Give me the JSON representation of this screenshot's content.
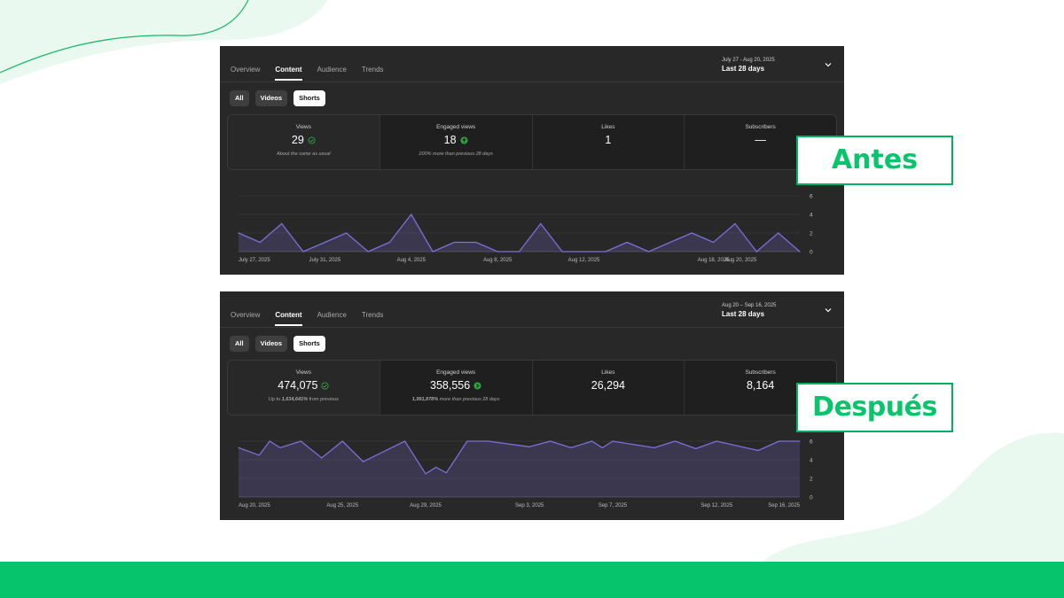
{
  "colors": {
    "accent_green": "#05c46b",
    "panel_bg": "#282828",
    "series": "#7c6fd9",
    "check_green": "#2ba640"
  },
  "panels": [
    {
      "tabs": [
        "Overview",
        "Content",
        "Audience",
        "Trends"
      ],
      "active_tab": "Content",
      "date_range": "July 27 - Aug 20, 2025",
      "period": "Last 28 days",
      "chips": [
        "All",
        "Videos",
        "Shorts"
      ],
      "selected_chip": "Shorts",
      "metrics": [
        {
          "label": "Views",
          "value": "29",
          "icon": "check-circle-icon",
          "note": "About the same as usual"
        },
        {
          "label": "Engaged views",
          "value": "18",
          "icon": "arrow-up-circle-icon",
          "note": "200% more than previous 28 days"
        },
        {
          "label": "Likes",
          "value": "1"
        },
        {
          "label": "Subscribers",
          "value": "—"
        }
      ],
      "badge": "Antes",
      "chart_data": {
        "type": "area",
        "y_ticks": [
          0,
          2,
          4,
          6
        ],
        "ylim": [
          0,
          6
        ],
        "x_tick_labels": [
          "July 27, 2025",
          "July 31, 2025",
          "Aug 4, 2025",
          "Aug 8, 2025",
          "Aug 12, 2025",
          "Aug 18, 2025",
          "Aug 20, 2025"
        ],
        "x_tick_days": [
          0,
          4,
          8,
          12,
          16,
          22,
          24
        ],
        "x_days": [
          0,
          1,
          2,
          3,
          4,
          5,
          6,
          7,
          8,
          9,
          10,
          11,
          12,
          13,
          14,
          15,
          16,
          17,
          18,
          19,
          20,
          21,
          22,
          23,
          24,
          25,
          26
        ],
        "values": [
          2,
          1,
          3,
          0,
          1,
          2,
          0,
          1,
          4,
          0,
          1,
          1,
          0,
          0,
          3,
          0,
          0,
          0,
          1,
          0,
          1,
          2,
          1,
          3,
          0,
          2,
          0
        ]
      }
    },
    {
      "tabs": [
        "Overview",
        "Content",
        "Audience",
        "Trends"
      ],
      "active_tab": "Content",
      "date_range": "Aug 20 – Sep 16, 2025",
      "period": "Last 28 days",
      "chips": [
        "All",
        "Videos",
        "Shorts"
      ],
      "selected_chip": "Shorts",
      "metrics": [
        {
          "label": "Views",
          "value": "474,075",
          "icon": "check-circle-icon",
          "note_prefix": "Up to ",
          "note_bold": "1,634,641%",
          "note": " from previous"
        },
        {
          "label": "Engaged views",
          "value": "358,556",
          "icon": "arrow-up-circle-icon",
          "note_bold": "1,991,878%",
          "note": " more than previous 28 days"
        },
        {
          "label": "Likes",
          "value": "26,294"
        },
        {
          "label": "Subscribers",
          "value": "8,164"
        }
      ],
      "badge": "Después",
      "chart_data": {
        "type": "area",
        "y_ticks": [
          0,
          2,
          4,
          6
        ],
        "ylim": [
          0,
          6
        ],
        "x_tick_labels": [
          "Aug 20, 2025",
          "Aug 25, 2025",
          "Aug 29, 2025",
          "Sep 3, 2025",
          "Sep 7, 2025",
          "Sep 12, 2025",
          "Sep 16, 2025"
        ],
        "x_tick_days": [
          0,
          5,
          9,
          14,
          18,
          23,
          27
        ],
        "x_days": [
          0,
          1,
          1.5,
          2,
          3,
          4,
          5,
          6,
          8,
          9,
          9.5,
          10,
          11,
          12,
          14,
          15,
          16,
          17,
          17.5,
          18,
          20,
          21,
          22,
          23,
          25,
          26,
          27
        ],
        "values": [
          5.3,
          4.5,
          6,
          5.3,
          6,
          4.2,
          6,
          3.8,
          6,
          2.5,
          3.2,
          2.6,
          6,
          6,
          5.4,
          6,
          5.3,
          6,
          5.3,
          6,
          5.3,
          6,
          5.2,
          6,
          5,
          6,
          6
        ]
      }
    }
  ]
}
